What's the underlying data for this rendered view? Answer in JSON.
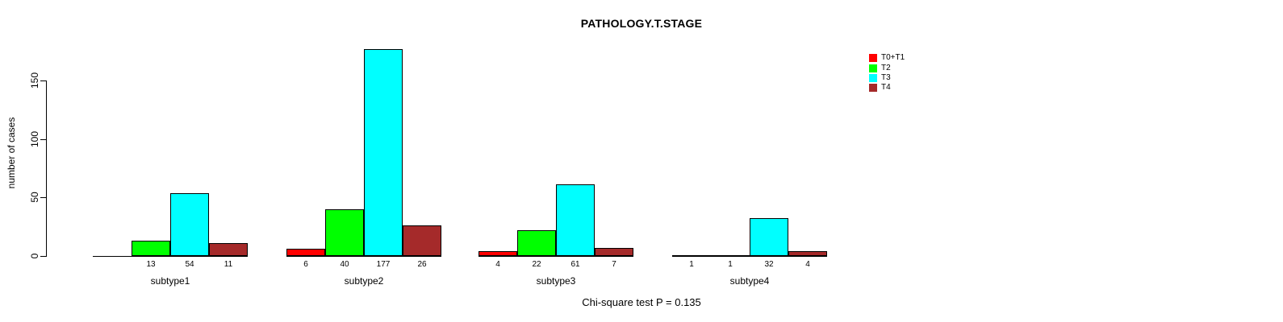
{
  "chart_data": {
    "type": "bar",
    "title": "PATHOLOGY.T.STAGE",
    "xlabel": "",
    "ylabel": "number of cases",
    "footnote": "Chi-square test P = 0.135",
    "categories": [
      "subtype1",
      "subtype2",
      "subtype3",
      "subtype4"
    ],
    "series": [
      {
        "name": "T0+T1",
        "color": "#FF0000",
        "values": [
          0,
          6,
          4,
          1
        ],
        "bar_labels": [
          "",
          "6",
          "4",
          "1"
        ]
      },
      {
        "name": "T2",
        "color": "#00FF00",
        "values": [
          13,
          40,
          22,
          1
        ],
        "bar_labels": [
          "13",
          "40",
          "22",
          "1"
        ]
      },
      {
        "name": "T3",
        "color": "#00FFFF",
        "values": [
          54,
          177,
          61,
          32
        ],
        "bar_labels": [
          "54",
          "177",
          "61",
          "32"
        ]
      },
      {
        "name": "T4",
        "color": "#A52A2A",
        "values": [
          11,
          26,
          7,
          4
        ],
        "bar_labels": [
          "11",
          "26",
          "7",
          "4"
        ]
      }
    ],
    "yticks": [
      0,
      50,
      100,
      150
    ],
    "ylim": [
      0,
      150
    ],
    "grid": false,
    "legend_position": "top-right"
  }
}
